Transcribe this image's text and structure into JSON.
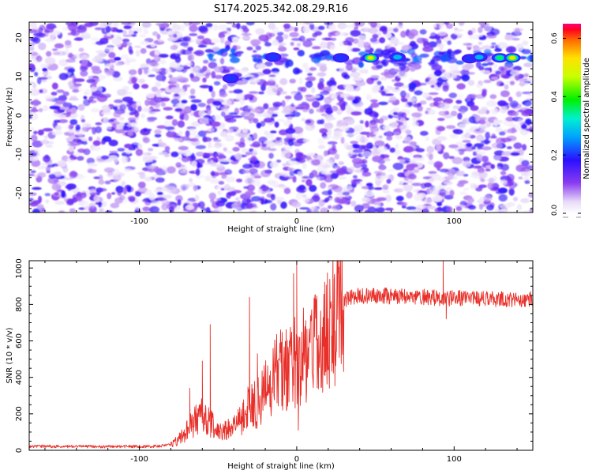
{
  "title": "S174.2025.342.08.29.R16",
  "chart_data": [
    {
      "type": "heatmap",
      "xlabel": "Height of straight line (km)",
      "ylabel": "Frequency (Hz)",
      "xlim": [
        -170,
        150
      ],
      "ylim": [
        -25,
        24
      ],
      "xticks": [
        -100,
        0,
        100
      ],
      "yticks": [
        20,
        10,
        0,
        -10,
        -20
      ],
      "ytick_labels": [
        "20",
        "10",
        "0",
        "-10",
        "-20"
      ],
      "colorbar": {
        "label": "Normalized spectral amplitude",
        "range": [
          0.0,
          0.65
        ],
        "ticks": [
          0.0,
          0.2,
          0.4,
          0.6
        ],
        "tick_labels": [
          "0.0",
          "0.2",
          "0.4",
          "0.6"
        ]
      },
      "signal_band_hz": [
        13,
        17
      ],
      "signal_start_km": -60,
      "peaks": [
        {
          "x": -42,
          "y": 9.5,
          "v": 0.25
        },
        {
          "x": -15,
          "y": 15,
          "v": 0.22
        },
        {
          "x": 28,
          "y": 14.8,
          "v": 0.25
        },
        {
          "x": 47,
          "y": 14.8,
          "v": 0.55
        },
        {
          "x": 64,
          "y": 15,
          "v": 0.28
        },
        {
          "x": 110,
          "y": 14.6,
          "v": 0.25
        },
        {
          "x": 116,
          "y": 15,
          "v": 0.3
        },
        {
          "x": 129,
          "y": 14.8,
          "v": 0.38
        },
        {
          "x": 137,
          "y": 14.8,
          "v": 0.58
        }
      ]
    },
    {
      "type": "line",
      "xlabel": "Height of straight line (km)",
      "ylabel": "SNR (10 * v/v)",
      "xlim": [
        -170,
        150
      ],
      "ylim": [
        0,
        1040
      ],
      "xticks": [
        -100,
        0,
        100
      ],
      "yticks": [
        0,
        200,
        400,
        600,
        800,
        1000
      ],
      "ytick_labels": [
        "0",
        "200",
        "400",
        "600",
        "800",
        "1000"
      ],
      "color": "#e8302a",
      "envelope": [
        [
          -170,
          22
        ],
        [
          -120,
          20
        ],
        [
          -90,
          22
        ],
        [
          -80,
          30
        ],
        [
          -75,
          60
        ],
        [
          -70,
          110
        ],
        [
          -65,
          160
        ],
        [
          -60,
          200
        ],
        [
          -55,
          160
        ],
        [
          -50,
          110
        ],
        [
          -45,
          110
        ],
        [
          -40,
          140
        ],
        [
          -35,
          170
        ],
        [
          -30,
          250
        ],
        [
          -25,
          260
        ],
        [
          -20,
          330
        ],
        [
          -15,
          400
        ],
        [
          -10,
          460
        ],
        [
          -5,
          470
        ],
        [
          0,
          500
        ],
        [
          5,
          540
        ],
        [
          10,
          600
        ],
        [
          15,
          660
        ],
        [
          20,
          720
        ],
        [
          25,
          780
        ],
        [
          30,
          830
        ],
        [
          40,
          850
        ],
        [
          60,
          845
        ],
        [
          80,
          840
        ],
        [
          100,
          835
        ],
        [
          120,
          830
        ],
        [
          150,
          830
        ]
      ],
      "spikes": [
        {
          "x": -68,
          "y": 340
        },
        {
          "x": -60,
          "y": 490
        },
        {
          "x": -55,
          "y": 690
        },
        {
          "x": -30,
          "y": 840
        },
        {
          "x": -25,
          "y": 530
        },
        {
          "x": -2,
          "y": 970
        },
        {
          "x": 0,
          "y": 1020
        },
        {
          "x": 1,
          "y": 110
        },
        {
          "x": 28,
          "y": 870
        },
        {
          "x": 93,
          "y": 1040
        },
        {
          "x": 95,
          "y": 720
        }
      ]
    }
  ]
}
